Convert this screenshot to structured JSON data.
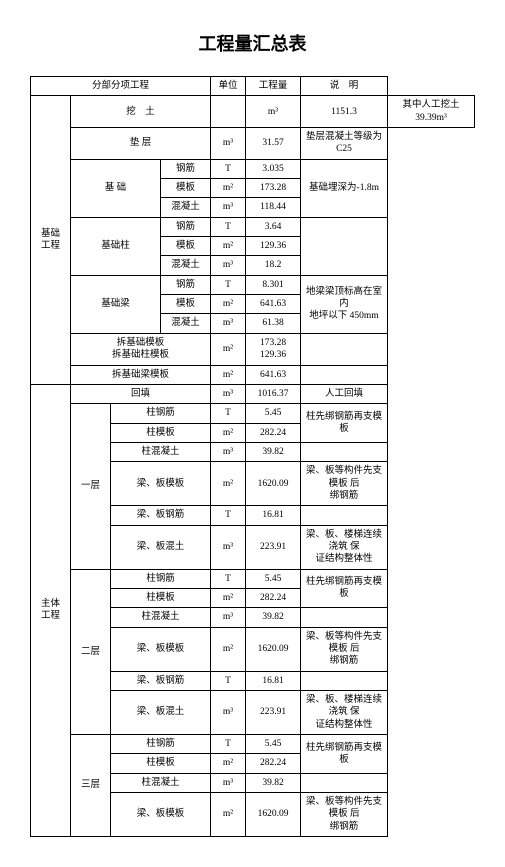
{
  "title": "工程量汇总表",
  "header": {
    "c1": "分部分项工程",
    "c2": "单位",
    "c3": "工程量",
    "c4": "说　明"
  },
  "rows": [
    {
      "a": "基础\n工程",
      "b": "挖　土",
      "d": "",
      "e": "m³",
      "f": "1151.3",
      "g": "其中人工挖土\n39.39m³",
      "a_rs": 13,
      "b_cs": 3,
      "g_ok": true
    },
    {
      "b": "垫 层",
      "e": "m³",
      "f": "31.57",
      "g": "垫层混凝土等级为\nC25",
      "b_cs": 3
    },
    {
      "b": "基 础",
      "d": "钢筋",
      "e": "T",
      "f": "3.035",
      "g": "基础埋深为-1.8m",
      "b_rs": 3,
      "b_cs": 2,
      "g_rs": 3
    },
    {
      "d": "模板",
      "e": "m²",
      "f": "173.28"
    },
    {
      "d": "混凝土",
      "e": "m³",
      "f": "118.44"
    },
    {
      "b": "基础柱",
      "d": "钢筋",
      "e": "T",
      "f": "3.64",
      "g": "",
      "b_rs": 3,
      "b_cs": 2,
      "g_rs": 3
    },
    {
      "d": "模板",
      "e": "m²",
      "f": "129.36"
    },
    {
      "d": "混凝土",
      "e": "m³",
      "f": "18.2"
    },
    {
      "b": "基础梁",
      "d": "钢筋",
      "e": "T",
      "f": "8.301",
      "g": "地梁梁顶标高在室内\n地坪以下 450mm",
      "b_rs": 3,
      "b_cs": 2,
      "g_rs": 3
    },
    {
      "d": "模板",
      "e": "m²",
      "f": "641.63"
    },
    {
      "d": "混凝土",
      "e": "m³",
      "f": "61.38"
    },
    {
      "b": "拆基础模板\n拆基础柱模板",
      "e": "m²",
      "f": "173.28\n129.36",
      "g": "",
      "b_cs": 3
    },
    {
      "b": "拆基础梁模板",
      "e": "m²",
      "f": "641.63",
      "g": "",
      "b_cs": 3
    },
    {
      "a": "主体\n工程",
      "b": "回填",
      "e": "m³",
      "f": "1016.37",
      "g": "人工回填",
      "a_rs": 17,
      "b_cs": 3
    },
    {
      "b": "一层",
      "c": "柱钢筋",
      "e": "T",
      "f": "5.45",
      "g": "柱先绑钢筋再支模板",
      "b_rs": 6,
      "c_cs": 2,
      "g_rs": 2
    },
    {
      "c": "柱模板",
      "e": "m²",
      "f": "282.24",
      "c_cs": 2
    },
    {
      "c": "柱混凝土",
      "e": "m³",
      "f": "39.82",
      "g": "",
      "c_cs": 2
    },
    {
      "c": "梁、板模板",
      "e": "m²",
      "f": "1620.09",
      "g": "梁、板等构件先支模板 后\n绑钢筋",
      "c_cs": 2
    },
    {
      "c": "梁、板钢筋",
      "e": "T",
      "f": "16.81",
      "g": "",
      "c_cs": 2
    },
    {
      "c": "梁、板混土",
      "e": "m³",
      "f": "223.91",
      "g": "梁、板、楼梯连续浇筑 保\n证结构整体性",
      "c_cs": 2
    },
    {
      "b": "二层",
      "c": "柱钢筋",
      "e": "T",
      "f": "5.45",
      "g": "柱先绑钢筋再支模板",
      "b_rs": 6,
      "c_cs": 2,
      "g_rs": 2
    },
    {
      "c": "柱模板",
      "e": "m²",
      "f": "282.24",
      "c_cs": 2
    },
    {
      "c": "柱混凝土",
      "e": "m³",
      "f": "39.82",
      "g": "",
      "c_cs": 2
    },
    {
      "c": "梁、板模板",
      "e": "m²",
      "f": "1620.09",
      "g": "梁、板等构件先支模板 后\n绑钢筋",
      "c_cs": 2
    },
    {
      "c": "梁、板钢筋",
      "e": "T",
      "f": "16.81",
      "g": "",
      "c_cs": 2
    },
    {
      "c": "梁、板混土",
      "e": "m³",
      "f": "223.91",
      "g": "梁、板、楼梯连续浇筑 保\n证结构整体性",
      "c_cs": 2
    },
    {
      "b": "三层",
      "c": "柱钢筋",
      "e": "T",
      "f": "5.45",
      "g": "柱先绑钢筋再支模板",
      "b_rs": 4,
      "c_cs": 2,
      "g_rs": 2
    },
    {
      "c": "柱模板",
      "e": "m²",
      "f": "282.24",
      "c_cs": 2
    },
    {
      "c": "柱混凝土",
      "e": "m³",
      "f": "39.82",
      "g": "",
      "c_cs": 2
    },
    {
      "c": "梁、板模板",
      "e": "m²",
      "f": "1620.09",
      "g": "梁、板等构件先支模板 后\n绑钢筋",
      "c_cs": 2
    }
  ]
}
